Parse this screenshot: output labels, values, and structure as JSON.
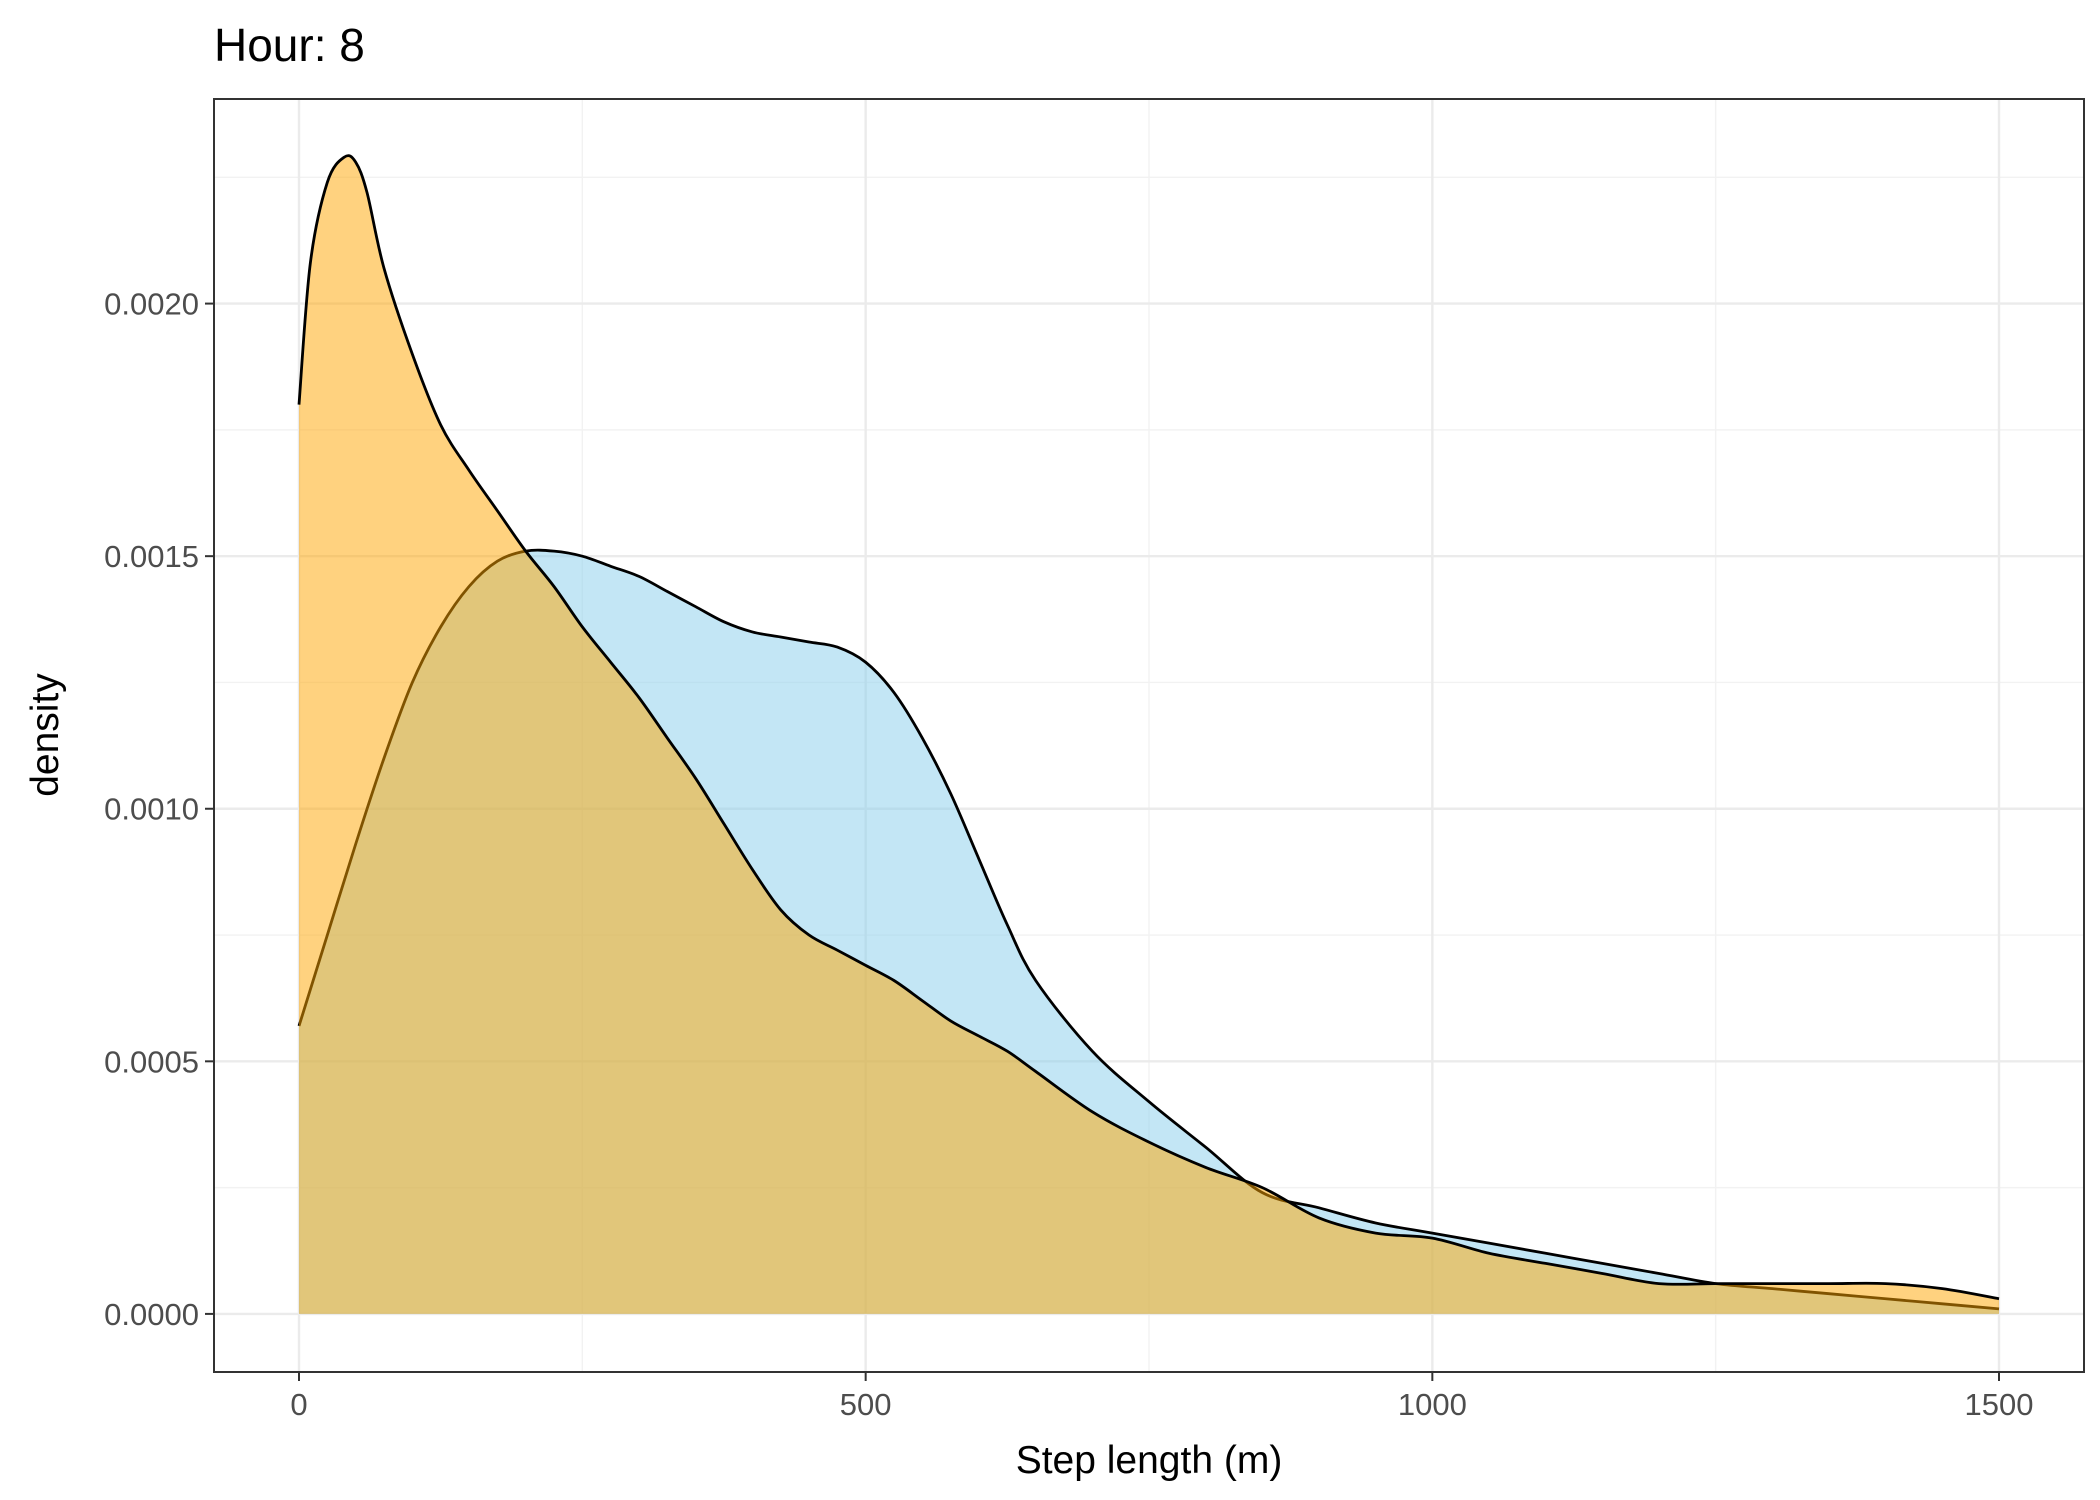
{
  "chart_data": {
    "type": "area",
    "title": "Hour: 8",
    "xlabel": "Step length (m)",
    "ylabel": "density",
    "xlim": [
      -75,
      1575
    ],
    "ylim": [
      -0.000115,
      0.002405
    ],
    "x_ticks": [
      0,
      500,
      1000,
      1500
    ],
    "x_tick_labels": [
      "0",
      "500",
      "1000",
      "1500"
    ],
    "y_ticks": [
      0,
      0.0005,
      0.001,
      0.0015,
      0.002
    ],
    "y_tick_labels": [
      "0.0000",
      "0.0005",
      "0.0010",
      "0.0015",
      "0.0020"
    ],
    "grid": true,
    "legend": "none",
    "series": [
      {
        "color": "#87CEEB",
        "opacity": 0.5,
        "x": [
          0,
          25,
          50,
          75,
          100,
          125,
          150,
          175,
          200,
          225,
          250,
          275,
          300,
          325,
          350,
          375,
          400,
          425,
          450,
          475,
          500,
          525,
          550,
          575,
          600,
          625,
          650,
          700,
          750,
          800,
          850,
          900,
          950,
          1000,
          1050,
          1100,
          1150,
          1200,
          1250,
          1300,
          1350,
          1400,
          1450,
          1500
        ],
        "y": [
          0.00057,
          0.00075,
          0.00093,
          0.0011,
          0.00125,
          0.00136,
          0.00144,
          0.00149,
          0.00151,
          0.00151,
          0.0015,
          0.00148,
          0.00146,
          0.00143,
          0.0014,
          0.00137,
          0.00135,
          0.00134,
          0.00133,
          0.00132,
          0.00129,
          0.00123,
          0.00114,
          0.00103,
          0.0009,
          0.00077,
          0.00066,
          0.00052,
          0.00042,
          0.00033,
          0.00024,
          0.00021,
          0.00018,
          0.00016,
          0.00014,
          0.00012,
          0.0001,
          8e-05,
          6e-05,
          5e-05,
          4e-05,
          3e-05,
          2e-05,
          1e-05
        ]
      },
      {
        "color": "#FFA500",
        "opacity": 0.5,
        "x": [
          0,
          10,
          25,
          40,
          50,
          60,
          75,
          100,
          125,
          150,
          175,
          200,
          225,
          250,
          275,
          300,
          325,
          350,
          375,
          400,
          425,
          450,
          475,
          500,
          525,
          550,
          575,
          600,
          625,
          650,
          700,
          750,
          800,
          850,
          900,
          950,
          1000,
          1050,
          1100,
          1150,
          1200,
          1250,
          1300,
          1350,
          1400,
          1450,
          1500
        ],
        "y": [
          0.0018,
          0.00208,
          0.00224,
          0.00229,
          0.00228,
          0.00222,
          0.00207,
          0.0019,
          0.00176,
          0.00167,
          0.00159,
          0.00151,
          0.00144,
          0.00136,
          0.00129,
          0.00122,
          0.00114,
          0.00106,
          0.00097,
          0.00088,
          0.0008,
          0.00075,
          0.00072,
          0.00069,
          0.00066,
          0.00062,
          0.00058,
          0.00055,
          0.00052,
          0.00048,
          0.0004,
          0.00034,
          0.00029,
          0.00025,
          0.00019,
          0.00016,
          0.00015,
          0.00012,
          0.0001,
          8e-05,
          6e-05,
          6e-05,
          6e-05,
          6e-05,
          6e-05,
          5e-05,
          3e-05
        ]
      }
    ]
  }
}
